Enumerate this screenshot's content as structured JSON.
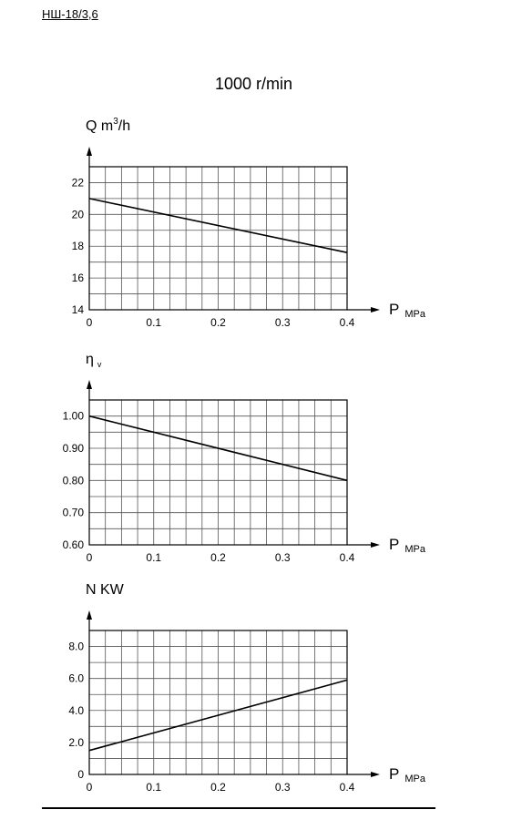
{
  "header": {
    "model": "НШ-18/3,6",
    "speed": "1000 r/min"
  },
  "chart_data": [
    {
      "type": "line",
      "ylabel": "Q m³/h",
      "ylabel_main": "Q m",
      "ylabel_sup": "3",
      "ylabel_tail": "/h",
      "xlabel_main": "P",
      "xlabel_unit": "MPa",
      "x_ticks": [
        "0",
        "0.1",
        "0.2",
        "0.3",
        "0.4"
      ],
      "y_ticks": [
        "14",
        "16",
        "18",
        "20",
        "22"
      ],
      "xlim": [
        0,
        0.4
      ],
      "ylim": [
        14,
        23
      ],
      "y_major": [
        14,
        16,
        18,
        20,
        22
      ],
      "series": [
        {
          "x": [
            0,
            0.4
          ],
          "y": [
            21.0,
            17.6
          ]
        }
      ]
    },
    {
      "type": "line",
      "ylabel": "η v",
      "ylabel_main": "η",
      "ylabel_sub": "v",
      "xlabel_main": "P",
      "xlabel_unit": "MPa",
      "x_ticks": [
        "0",
        "0.1",
        "0.2",
        "0.3",
        "0.4"
      ],
      "y_ticks": [
        "0.60",
        "0.70",
        "0.80",
        "0.90",
        "1.00"
      ],
      "xlim": [
        0,
        0.4
      ],
      "ylim": [
        0.6,
        1.05
      ],
      "y_major": [
        0.6,
        0.7,
        0.8,
        0.9,
        1.0
      ],
      "series": [
        {
          "x": [
            0,
            0.4
          ],
          "y": [
            1.0,
            0.8
          ]
        }
      ]
    },
    {
      "type": "line",
      "ylabel": "N KW",
      "ylabel_main": "N KW",
      "xlabel_main": "P",
      "xlabel_unit": "MPa",
      "x_ticks": [
        "0",
        "0.1",
        "0.2",
        "0.3",
        "0.4"
      ],
      "y_ticks": [
        "0",
        "2.0",
        "4.0",
        "6.0",
        "8.0"
      ],
      "xlim": [
        0,
        0.4
      ],
      "ylim": [
        0,
        9.0
      ],
      "y_major": [
        0,
        2,
        4,
        6,
        8
      ],
      "series": [
        {
          "x": [
            0,
            0.4
          ],
          "y": [
            1.5,
            5.9
          ]
        }
      ]
    }
  ]
}
